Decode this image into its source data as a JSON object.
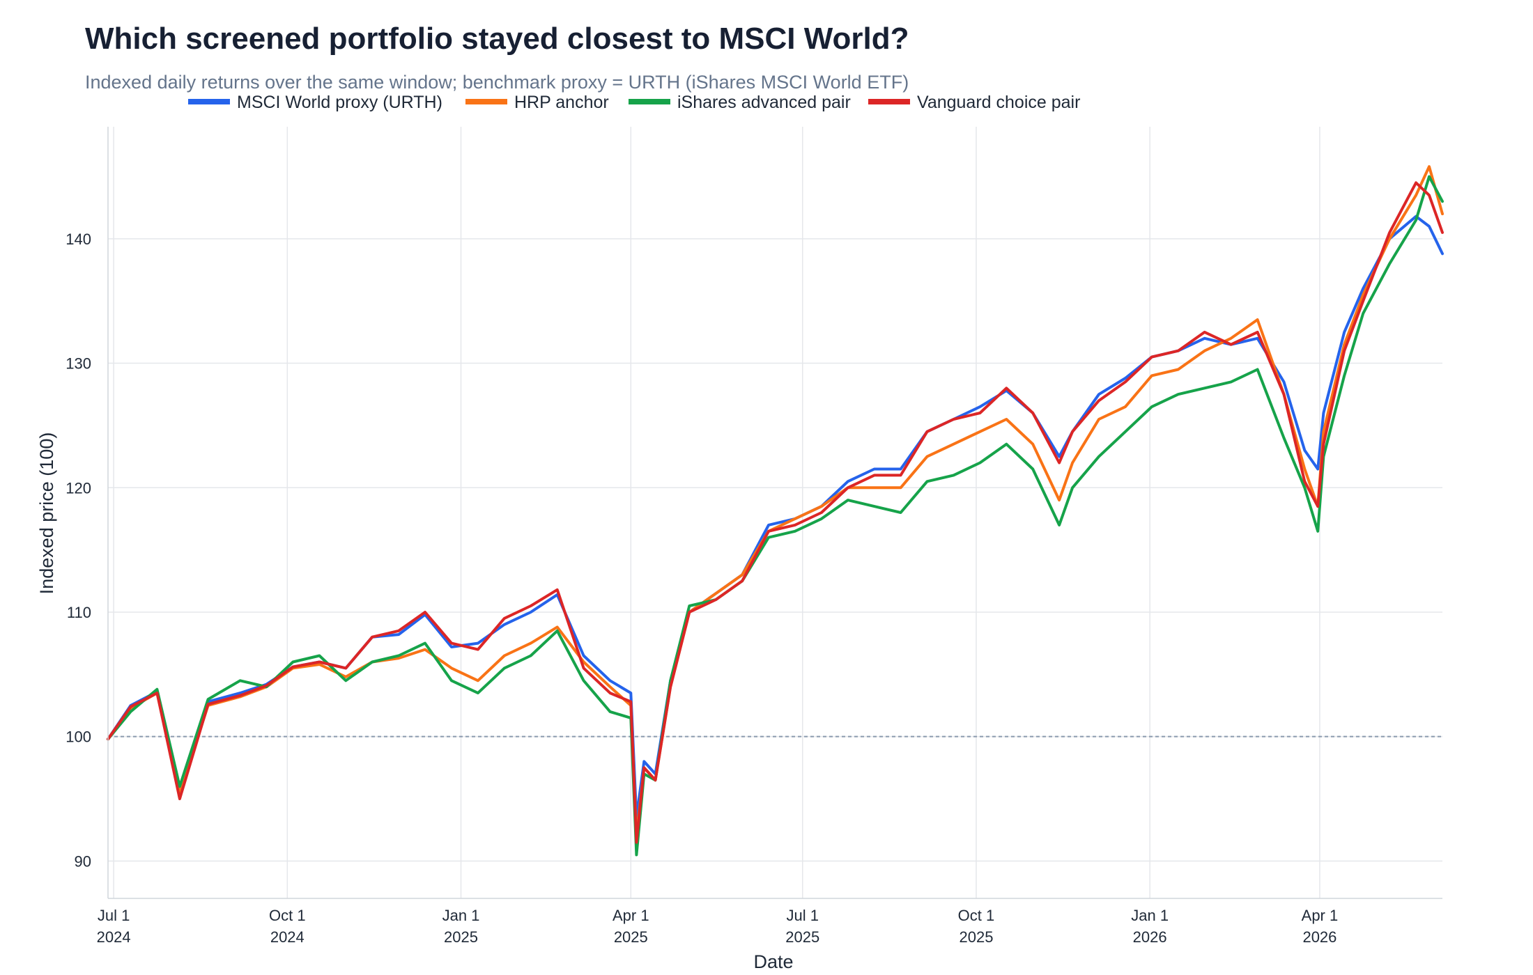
{
  "chart_data": {
    "type": "line",
    "title": "Which screened portfolio stayed closest to MSCI World?",
    "subtitle": "Indexed daily returns over the same window; benchmark proxy = URTH (iShares MSCI World ETF)",
    "xlabel": "Date",
    "ylabel": "Indexed price (100)",
    "xlim": [
      "2024-06-28",
      "2026-06-05"
    ],
    "ylim": [
      87,
      149
    ],
    "y_ticks": [
      90,
      100,
      110,
      120,
      130,
      140
    ],
    "x_ticks": [
      {
        "date": "2024-07-01",
        "label": [
          "Jul 1",
          "2024"
        ]
      },
      {
        "date": "2024-10-01",
        "label": [
          "Oct 1",
          "2024"
        ]
      },
      {
        "date": "2025-01-01",
        "label": [
          "Jan 1",
          "2025"
        ]
      },
      {
        "date": "2025-04-01",
        "label": [
          "Apr 1",
          "2025"
        ]
      },
      {
        "date": "2025-07-01",
        "label": [
          "Jul 1",
          "2025"
        ]
      },
      {
        "date": "2025-10-01",
        "label": [
          "Oct 1",
          "2025"
        ]
      },
      {
        "date": "2026-01-01",
        "label": [
          "Jan 1",
          "2026"
        ]
      },
      {
        "date": "2026-04-01",
        "label": [
          "Apr 1",
          "2026"
        ]
      }
    ],
    "reference_line": {
      "y": 100,
      "style": "dashed",
      "color": "#8a99ad"
    },
    "grid": true,
    "legend_position": "top",
    "x": [
      "2024-06-28",
      "2024-07-10",
      "2024-07-24",
      "2024-08-05",
      "2024-08-20",
      "2024-09-06",
      "2024-09-20",
      "2024-10-04",
      "2024-10-18",
      "2024-11-01",
      "2024-11-15",
      "2024-11-29",
      "2024-12-13",
      "2024-12-27",
      "2025-01-10",
      "2025-01-24",
      "2025-02-07",
      "2025-02-21",
      "2025-03-07",
      "2025-03-21",
      "2025-04-01",
      "2025-04-04",
      "2025-04-08",
      "2025-04-14",
      "2025-04-22",
      "2025-05-02",
      "2025-05-16",
      "2025-05-30",
      "2025-06-13",
      "2025-06-27",
      "2025-07-11",
      "2025-07-25",
      "2025-08-08",
      "2025-08-22",
      "2025-09-05",
      "2025-09-19",
      "2025-10-03",
      "2025-10-17",
      "2025-10-31",
      "2025-11-14",
      "2025-11-21",
      "2025-12-05",
      "2025-12-19",
      "2026-01-02",
      "2026-01-16",
      "2026-01-30",
      "2026-02-13",
      "2026-02-27",
      "2026-03-13",
      "2026-03-24",
      "2026-03-31",
      "2026-04-03",
      "2026-04-14",
      "2026-04-24",
      "2026-05-08",
      "2026-05-22",
      "2026-05-29",
      "2026-06-05"
    ],
    "series": [
      {
        "name": "MSCI World proxy (URTH)",
        "color": "#2563eb",
        "values": [
          99.8,
          102.5,
          103.6,
          95.2,
          102.8,
          103.5,
          104.2,
          105.6,
          106.0,
          105.5,
          108.0,
          108.2,
          109.8,
          107.2,
          107.5,
          109.0,
          110.0,
          111.4,
          106.5,
          104.5,
          103.5,
          93.5,
          98.0,
          97.0,
          104.5,
          110.0,
          111.5,
          113.0,
          117.0,
          117.5,
          118.5,
          120.5,
          121.5,
          121.5,
          124.5,
          125.5,
          126.5,
          127.8,
          126.0,
          122.5,
          124.5,
          127.5,
          128.8,
          130.5,
          131.0,
          132.0,
          131.5,
          132.0,
          128.5,
          123.0,
          121.5,
          126.0,
          132.5,
          136.0,
          140.0,
          141.8,
          141.0,
          138.8
        ]
      },
      {
        "name": "HRP anchor",
        "color": "#f97316",
        "values": [
          99.8,
          102.3,
          103.5,
          95.5,
          102.5,
          103.2,
          104.0,
          105.5,
          105.8,
          104.8,
          106.0,
          106.3,
          107.0,
          105.5,
          104.5,
          106.5,
          107.5,
          108.8,
          106.0,
          104.0,
          102.5,
          92.0,
          97.5,
          96.5,
          104.0,
          110.0,
          111.5,
          113.0,
          116.5,
          117.5,
          118.5,
          120.0,
          120.0,
          120.0,
          122.5,
          123.5,
          124.5,
          125.5,
          123.5,
          119.0,
          122.0,
          125.5,
          126.5,
          129.0,
          129.5,
          131.0,
          132.0,
          133.5,
          127.5,
          121.5,
          118.5,
          124.5,
          131.5,
          135.5,
          140.0,
          143.5,
          145.8,
          142.0
        ]
      },
      {
        "name": "iShares advanced pair",
        "color": "#16a34a",
        "values": [
          99.8,
          102.0,
          103.8,
          96.0,
          103.0,
          104.5,
          104.0,
          106.0,
          106.5,
          104.5,
          106.0,
          106.5,
          107.5,
          104.5,
          103.5,
          105.5,
          106.5,
          108.5,
          104.5,
          102.0,
          101.5,
          90.5,
          97.0,
          96.5,
          104.5,
          110.5,
          111.0,
          112.5,
          116.0,
          116.5,
          117.5,
          119.0,
          118.5,
          118.0,
          120.5,
          121.0,
          122.0,
          123.5,
          121.5,
          117.0,
          120.0,
          122.5,
          124.5,
          126.5,
          127.5,
          128.0,
          128.5,
          129.5,
          124.0,
          120.0,
          116.5,
          122.5,
          129.0,
          134.0,
          138.0,
          141.5,
          145.0,
          143.0
        ]
      },
      {
        "name": "Vanguard choice pair",
        "color": "#dc2626",
        "values": [
          99.8,
          102.4,
          103.5,
          95.0,
          102.6,
          103.3,
          104.1,
          105.6,
          106.0,
          105.5,
          108.0,
          108.5,
          110.0,
          107.5,
          107.0,
          109.5,
          110.5,
          111.8,
          105.5,
          103.5,
          102.8,
          91.5,
          97.5,
          96.5,
          104.0,
          110.0,
          111.0,
          112.5,
          116.5,
          117.0,
          118.0,
          120.0,
          121.0,
          121.0,
          124.5,
          125.5,
          126.0,
          128.0,
          126.0,
          122.0,
          124.5,
          127.0,
          128.5,
          130.5,
          131.0,
          132.5,
          131.5,
          132.5,
          127.5,
          120.5,
          118.5,
          123.5,
          131.0,
          135.0,
          140.5,
          144.5,
          143.5,
          140.5
        ]
      }
    ]
  }
}
